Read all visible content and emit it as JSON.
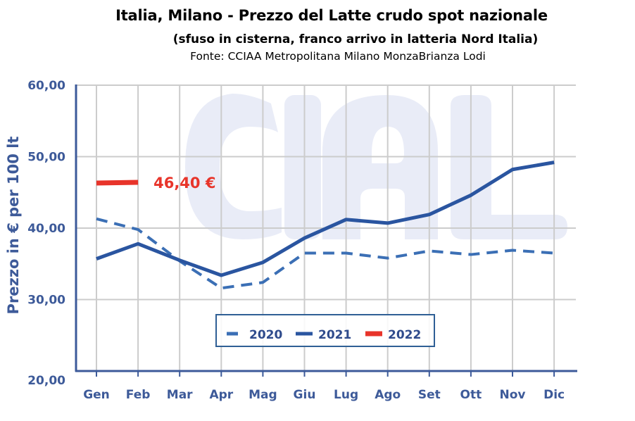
{
  "header": {
    "title": "Italia, Milano - Prezzo del Latte crudo spot nazionale",
    "subtitle": "(sfuso in cisterna, franco arrivo in latteria Nord Italia)",
    "source": "Fonte: CCIAA Metropolitana Milano MonzaBrianza Lodi"
  },
  "watermark": "CIAL",
  "chart_data": {
    "type": "line",
    "title": "Italia, Milano - Prezzo del Latte crudo spot nazionale",
    "subtitle": "(sfuso in cisterna, franco arrivo in latteria Nord Italia)",
    "xlabel": "",
    "ylabel": "Prezzo in € per 100 lt",
    "categories": [
      "Gen",
      "Feb",
      "Mar",
      "Apr",
      "Mag",
      "Giu",
      "Lug",
      "Ago",
      "Set",
      "Ott",
      "Nov",
      "Dic"
    ],
    "ylim": [
      20,
      60
    ],
    "yticks": [
      20,
      30,
      40,
      50,
      60
    ],
    "ytick_labels": [
      "20,00",
      "30,00",
      "40,00",
      "50,00",
      "60,00"
    ],
    "grid": true,
    "legend_position": "bottom-center",
    "series": [
      {
        "name": "2020",
        "style": "dashed",
        "color": "#3b6fb5",
        "values": [
          41.3,
          39.8,
          35.4,
          31.6,
          32.4,
          36.5,
          36.5,
          35.8,
          36.8,
          36.3,
          36.9,
          36.5
        ]
      },
      {
        "name": "2021",
        "style": "solid",
        "color": "#2a55a0",
        "values": [
          35.7,
          37.8,
          35.5,
          33.4,
          35.2,
          38.6,
          41.2,
          40.7,
          41.9,
          44.6,
          48.2,
          49.2
        ]
      },
      {
        "name": "2022",
        "style": "solid",
        "color": "#e8342a",
        "values": [
          46.3,
          46.4,
          null,
          null,
          null,
          null,
          null,
          null,
          null,
          null,
          null,
          null
        ]
      }
    ],
    "annotations": [
      {
        "text": "46,40 €",
        "series": "2022",
        "category": "Feb"
      }
    ],
    "colors": {
      "axis": "#3c5a9a",
      "grid": "#cccccc",
      "text": "#3d5a99",
      "watermark": "#e9ecf7"
    }
  }
}
